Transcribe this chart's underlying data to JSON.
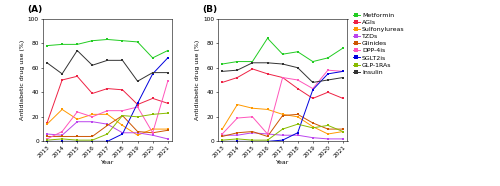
{
  "years": [
    2013,
    2014,
    2015,
    2016,
    2017,
    2018,
    2019,
    2020,
    2021
  ],
  "panel_A": {
    "Metformin": [
      78,
      79,
      79,
      82,
      83,
      82,
      81,
      68,
      74
    ],
    "AGIs": [
      15,
      50,
      53,
      39,
      43,
      42,
      30,
      35,
      31
    ],
    "Sulfonylureas": [
      14,
      26,
      18,
      22,
      22,
      13,
      5,
      10,
      10
    ],
    "TZDs": [
      6,
      5,
      16,
      16,
      14,
      7,
      7,
      5,
      2
    ],
    "Glinides": [
      4,
      4,
      4,
      4,
      13,
      21,
      8,
      7,
      9
    ],
    "DPP-4is": [
      2,
      8,
      24,
      20,
      25,
      25,
      28,
      7,
      49
    ],
    "SGLT2is": [
      0,
      0,
      0,
      0,
      0,
      6,
      31,
      55,
      68
    ],
    "GLP-1RAs": [
      1,
      2,
      1,
      1,
      6,
      21,
      20,
      22,
      23
    ],
    "Insulin": [
      64,
      55,
      74,
      62,
      66,
      66,
      49,
      56,
      56
    ]
  },
  "panel_B": {
    "Metformin": [
      63,
      65,
      65,
      84,
      71,
      73,
      65,
      68,
      76
    ],
    "AGIs": [
      48,
      52,
      59,
      55,
      52,
      43,
      35,
      40,
      35
    ],
    "Sulfonylureas": [
      10,
      30,
      27,
      26,
      22,
      20,
      12,
      6,
      8
    ],
    "TZDs": [
      5,
      5,
      7,
      6,
      5,
      5,
      3,
      2,
      2
    ],
    "Glinides": [
      4,
      7,
      8,
      4,
      21,
      22,
      15,
      10,
      10
    ],
    "DPP-4is": [
      6,
      19,
      20,
      6,
      52,
      50,
      43,
      58,
      57
    ],
    "SGLT2is": [
      0,
      0,
      0,
      0,
      1,
      7,
      42,
      55,
      57
    ],
    "GLP-1RAs": [
      1,
      2,
      1,
      1,
      10,
      14,
      11,
      13,
      8
    ],
    "Insulin": [
      57,
      58,
      64,
      64,
      63,
      60,
      48,
      50,
      52
    ]
  },
  "color_map": {
    "Metformin": "#22CC22",
    "AGIs": "#EE2244",
    "Sulfonylureas": "#FF9900",
    "TZDs": "#BB44EE",
    "Glinides": "#CC5500",
    "DPP-4is": "#FF55BB",
    "SGLT2is": "#0000DD",
    "GLP-1RAs": "#88BB00",
    "Insulin": "#333333"
  },
  "series_names": [
    "Metformin",
    "AGIs",
    "Sulfonylureas",
    "TZDs",
    "Glinides",
    "DPP-4is",
    "SGLT2is",
    "GLP-1RAs",
    "Insulin"
  ],
  "ylim": [
    0,
    100
  ],
  "yticks": [
    0,
    20,
    40,
    60,
    80,
    100
  ],
  "xlabel": "Year",
  "ylabel": "Antidiabetic drug use (%)",
  "linewidth": 0.7,
  "markersize": 2.0,
  "tick_fontsize": 4.2,
  "label_fontsize": 4.5,
  "legend_fontsize": 4.5,
  "panel_labels": [
    "(A)",
    "(B)"
  ],
  "panel_label_fontsize": 6.5
}
